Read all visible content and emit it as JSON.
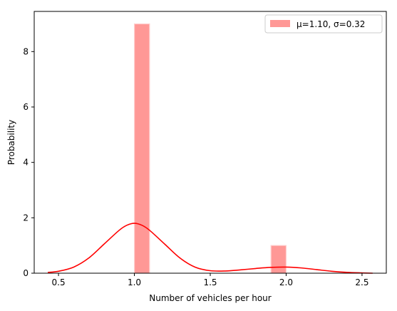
{
  "chart_data": {
    "type": "bar",
    "xlabel": "Number of vehicles per hour",
    "ylabel": "Probability",
    "xlim": [
      0.34,
      2.66
    ],
    "ylim": [
      0,
      9.45
    ],
    "xticks": [
      0.5,
      1.0,
      1.5,
      2.0,
      2.5
    ],
    "xtick_labels": [
      "0.5",
      "1.0",
      "1.5",
      "2.0",
      "2.5"
    ],
    "yticks": [
      0,
      2,
      4,
      6,
      8
    ],
    "ytick_labels": [
      "0",
      "2",
      "4",
      "6",
      "8"
    ],
    "grid": false,
    "legend_position": "top-right",
    "histogram": {
      "name": "μ=1.10, σ=0.32",
      "color": "#ff9896",
      "bins": [
        {
          "x0": 1.0,
          "x1": 1.1,
          "value": 9.0
        },
        {
          "x0": 1.9,
          "x1": 2.0,
          "value": 1.0
        }
      ]
    },
    "kde": {
      "color": "#ff0000",
      "x": [
        0.43,
        0.5,
        0.6,
        0.7,
        0.8,
        0.9,
        0.95,
        1.0,
        1.05,
        1.1,
        1.2,
        1.3,
        1.4,
        1.5,
        1.6,
        1.7,
        1.8,
        1.9,
        2.0,
        2.1,
        2.2,
        2.3,
        2.4,
        2.5,
        2.57
      ],
      "y": [
        0.03,
        0.07,
        0.22,
        0.55,
        1.05,
        1.55,
        1.73,
        1.8,
        1.73,
        1.55,
        1.05,
        0.55,
        0.22,
        0.09,
        0.08,
        0.12,
        0.17,
        0.21,
        0.22,
        0.19,
        0.13,
        0.07,
        0.03,
        0.01,
        0.0
      ]
    }
  }
}
